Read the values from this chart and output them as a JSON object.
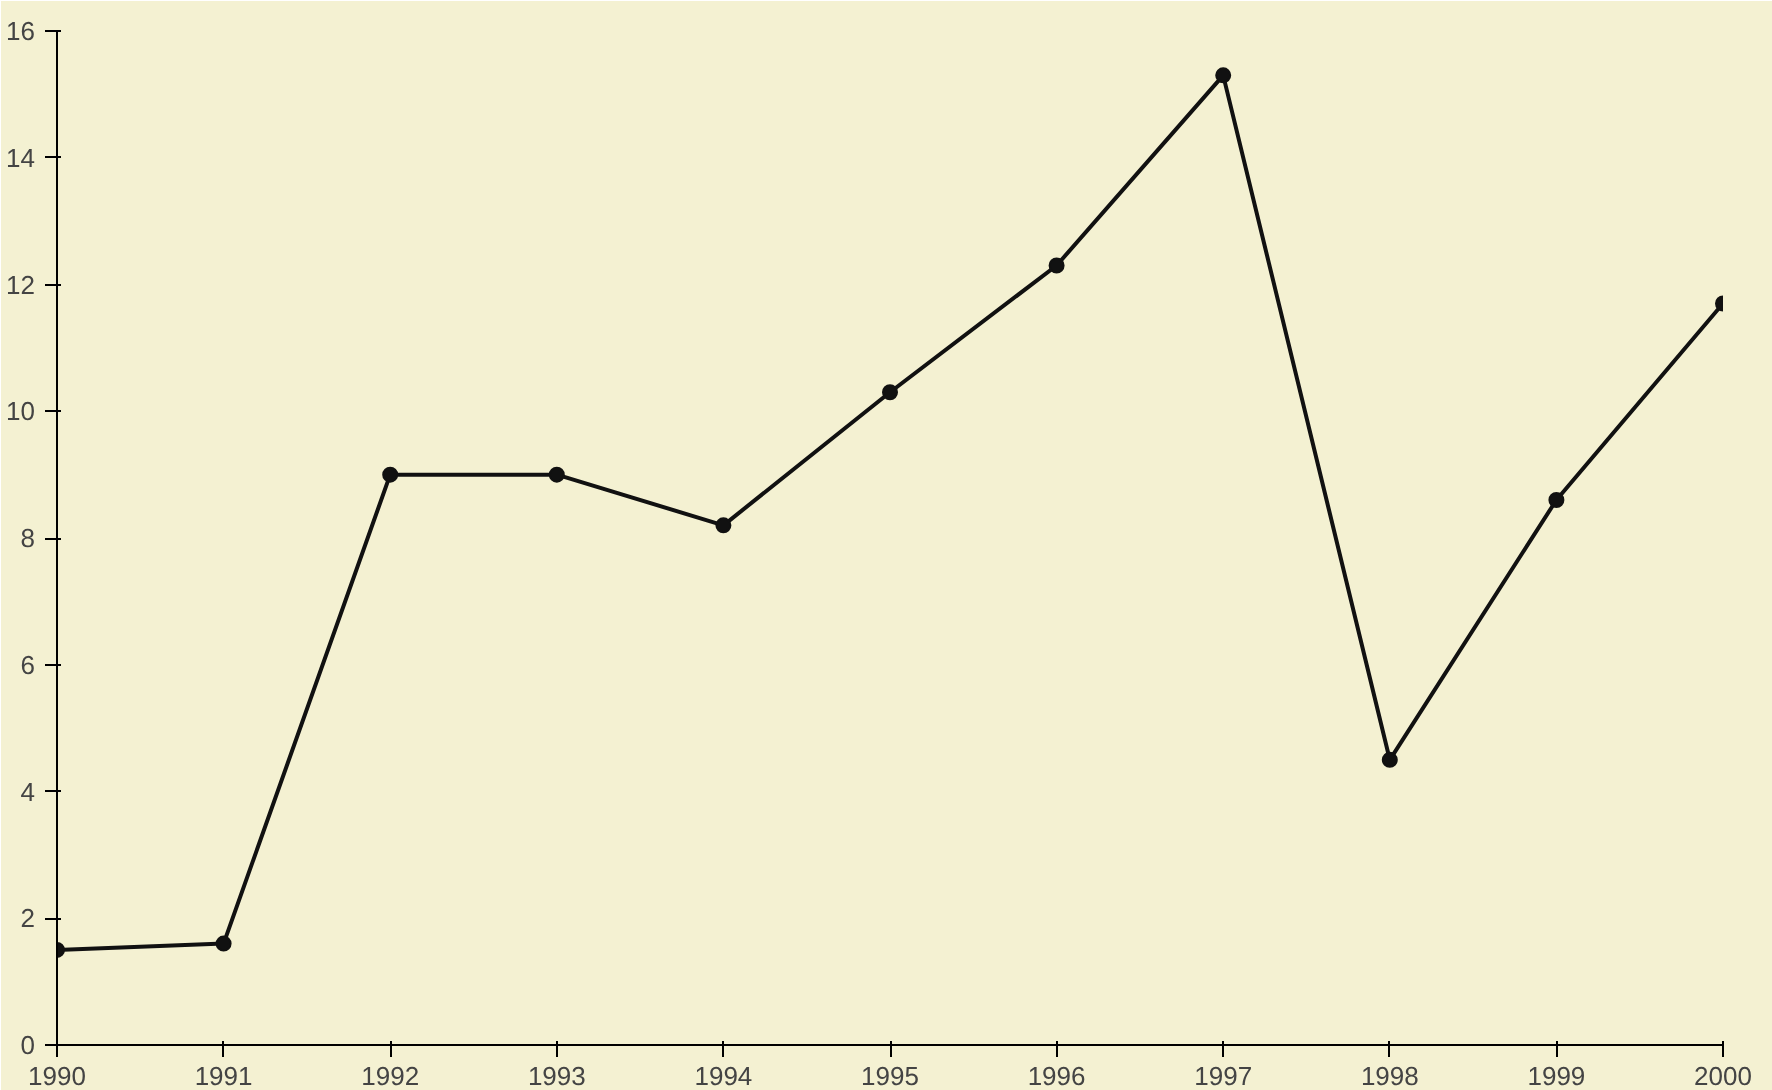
{
  "chart_data": {
    "type": "line",
    "x": [
      1990,
      1991,
      1992,
      1993,
      1994,
      1995,
      1996,
      1997,
      1998,
      1999,
      2000
    ],
    "series": [
      {
        "color": "#111111",
        "values": [
          1.5,
          1.6,
          9.0,
          9.0,
          8.2,
          10.3,
          12.3,
          15.3,
          4.5,
          8.6,
          11.7
        ]
      }
    ],
    "xlim": [
      1990,
      2000
    ],
    "xticks": [
      1990,
      1991,
      1992,
      1993,
      1994,
      1995,
      1996,
      1997,
      1998,
      1999,
      2000
    ],
    "ylim": [
      0,
      16
    ],
    "yticks": [
      0,
      2,
      4,
      6,
      8,
      10,
      12,
      14,
      16
    ],
    "grid": false,
    "marker": "circle",
    "line_style": "solid"
  }
}
